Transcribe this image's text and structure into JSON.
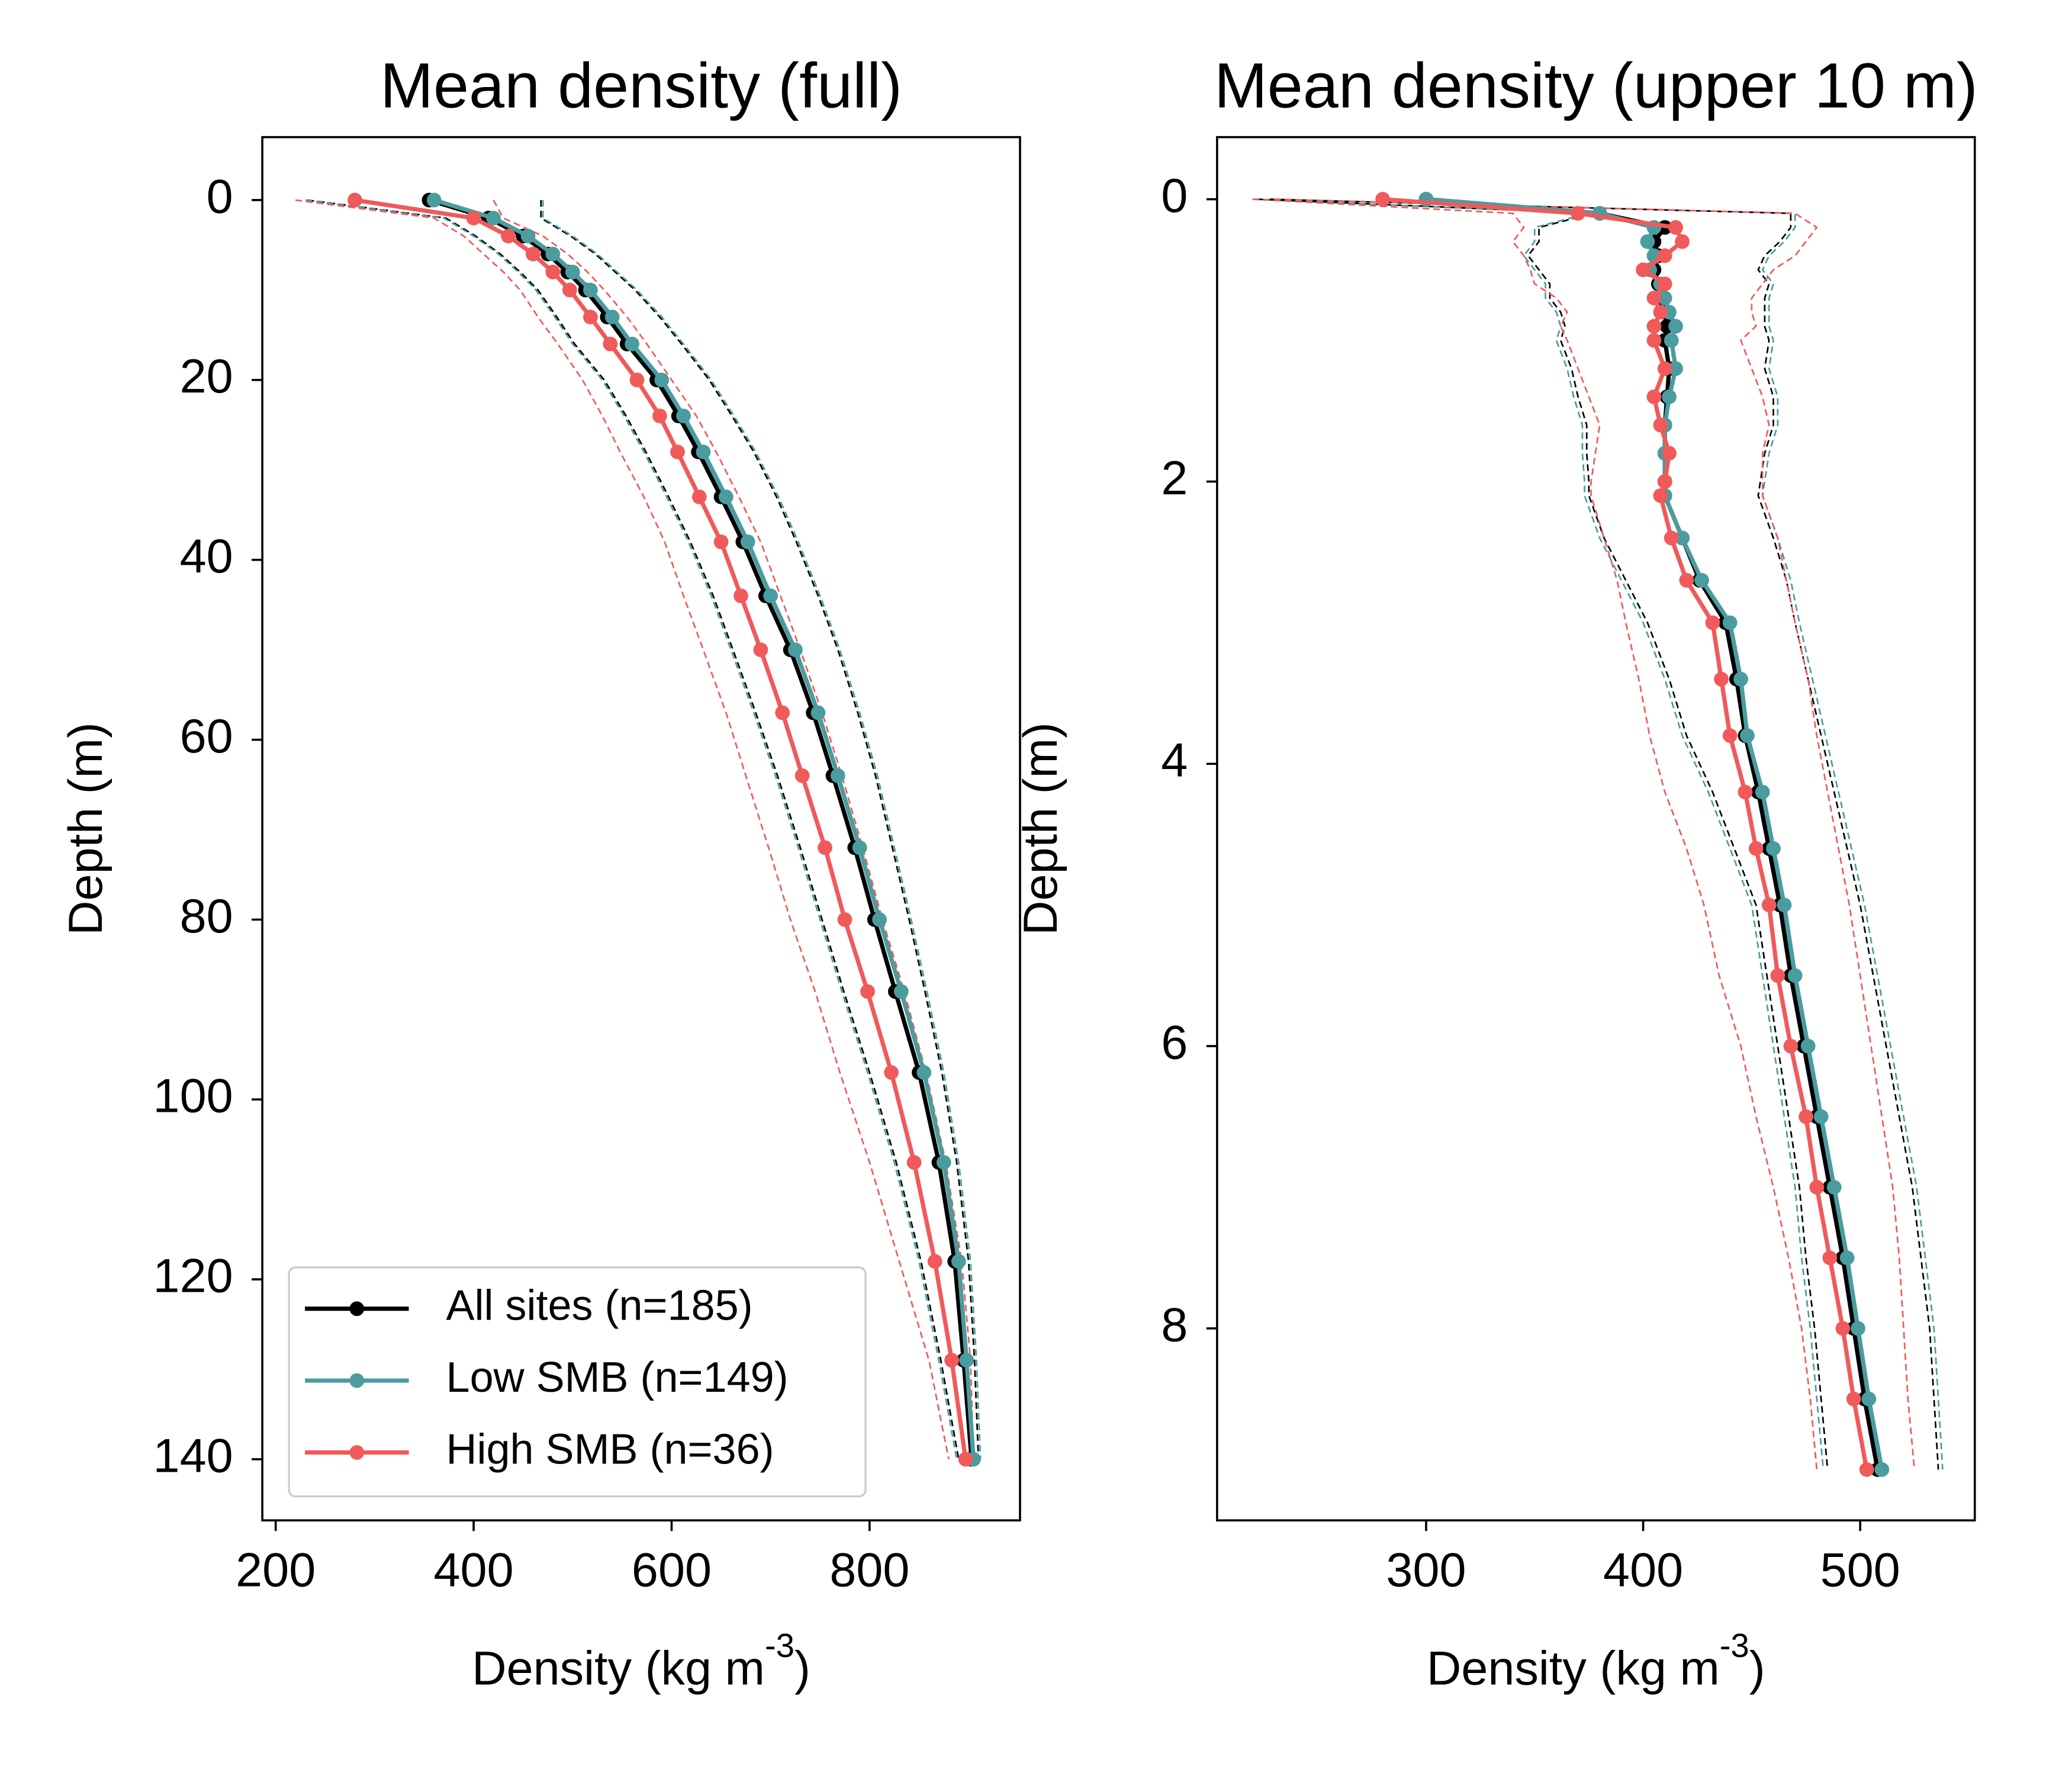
{
  "chart_data": [
    {
      "type": "line",
      "title": "Mean density (full)",
      "ylabel": "Depth (m)",
      "xlabel": [
        "Density (kg m",
        "-3",
        ")"
      ],
      "xlim": [
        186.5,
        952
      ],
      "xticks": [
        200,
        400,
        600,
        800
      ],
      "ylim": [
        146.8,
        -7
      ],
      "yticks": [
        0,
        20,
        40,
        60,
        80,
        100,
        120,
        140
      ],
      "legend": "lower left",
      "depth": [
        0,
        2,
        4,
        6,
        8,
        10,
        13,
        16,
        20,
        24,
        28,
        33,
        38,
        44,
        50,
        57,
        64,
        72,
        80,
        88,
        97,
        107,
        118,
        129,
        140
      ],
      "series": [
        {
          "color": "#000000",
          "dash": true,
          "values": [
            468,
            468,
            498,
            523,
            543,
            563,
            588,
            610,
            638,
            661,
            683,
            706,
            726,
            748,
            768,
            788,
            806,
            823,
            840,
            856,
            873,
            888,
            900,
            906,
            910
          ]
        },
        {
          "color": "#000000",
          "dash": true,
          "values": [
            232,
            372,
            402,
            427,
            447,
            465,
            484,
            502,
            532,
            554,
            574,
            597,
            619,
            642,
            662,
            685,
            707,
            730,
            752,
            774,
            800,
            827,
            852,
            872,
            890
          ]
        },
        {
          "color": "#4a9c9f",
          "dash": true,
          "values": [
            470,
            470,
            500,
            525,
            545,
            565,
            590,
            612,
            640,
            663,
            685,
            708,
            728,
            750,
            770,
            790,
            808,
            825,
            842,
            858,
            875,
            890,
            902,
            908,
            912
          ]
        },
        {
          "color": "#4a9c9f",
          "dash": true,
          "values": [
            230,
            370,
            400,
            425,
            445,
            463,
            482,
            500,
            530,
            552,
            572,
            595,
            617,
            640,
            660,
            683,
            705,
            728,
            750,
            772,
            798,
            825,
            850,
            870,
            888
          ]
        },
        {
          "color": "#f05a5a",
          "dash": true,
          "values": [
            420,
            430,
            470,
            495,
            515,
            532,
            555,
            575,
            600,
            625,
            645,
            668,
            690,
            710,
            730,
            752,
            772,
            793,
            813,
            835,
            857,
            877,
            893,
            902,
            905
          ]
        },
        {
          "color": "#f05a5a",
          "dash": true,
          "values": [
            220,
            360,
            390,
            410,
            430,
            447,
            465,
            485,
            510,
            530,
            548,
            572,
            593,
            612,
            632,
            655,
            675,
            698,
            720,
            745,
            770,
            800,
            830,
            860,
            880
          ]
        },
        {
          "name": "All sites (n=185)",
          "color": "#000000",
          "values": [
            355,
            415,
            450,
            475,
            495,
            513,
            535,
            555,
            585,
            607,
            627,
            650,
            672,
            695,
            720,
            743,
            763,
            785,
            805,
            826,
            850,
            870,
            886,
            895,
            903
          ]
        },
        {
          "name": "Low SMB (n=149)",
          "color": "#4a9c9f",
          "values": [
            360,
            420,
            455,
            480,
            500,
            518,
            540,
            560,
            590,
            612,
            632,
            655,
            677,
            700,
            725,
            748,
            768,
            790,
            810,
            832,
            855,
            875,
            890,
            898,
            905
          ]
        },
        {
          "name": "High SMB (n=36)",
          "color": "#f05a5a",
          "values": [
            280,
            400,
            435,
            460,
            480,
            497,
            518,
            538,
            565,
            588,
            606,
            628,
            650,
            670,
            690,
            712,
            732,
            755,
            775,
            798,
            822,
            845,
            866,
            883,
            897
          ]
        }
      ]
    },
    {
      "type": "line",
      "title": "Mean density (upper 10 m)",
      "ylabel": "Depth (m)",
      "xlabel": [
        "Density (kg m",
        "-3",
        ")"
      ],
      "xlim": [
        203.7,
        552.8
      ],
      "xticks": [
        300,
        400,
        500
      ],
      "ylim": [
        9.36,
        -0.44
      ],
      "yticks": [
        0,
        2,
        4,
        6,
        8
      ],
      "depth": [
        0,
        0.1,
        0.2,
        0.3,
        0.4,
        0.5,
        0.6,
        0.7,
        0.8,
        0.9,
        1.0,
        1.2,
        1.4,
        1.6,
        1.8,
        2.0,
        2.1,
        2.4,
        2.7,
        3.0,
        3.4,
        3.8,
        4.2,
        4.6,
        5.0,
        5.5,
        6.0,
        6.5,
        7.0,
        7.5,
        8.0,
        8.5,
        9.0
      ],
      "series": [
        {
          "color": "#000000",
          "dash": true,
          "values": [
            228,
            468,
            468,
            463,
            456,
            453,
            458,
            456,
            456,
            456,
            458,
            456,
            460,
            460,
            456,
            454,
            453,
            460,
            466,
            470,
            476,
            482,
            488,
            494,
            500,
            506,
            512,
            518,
            524,
            528,
            532,
            534,
            536
          ]
        },
        {
          "color": "#000000",
          "dash": true,
          "values": [
            222,
            377,
            352,
            352,
            347,
            352,
            357,
            357,
            362,
            364,
            362,
            367,
            370,
            374,
            374,
            375,
            375,
            382,
            392,
            402,
            412,
            420,
            432,
            442,
            452,
            457,
            462,
            467,
            472,
            475,
            479,
            482,
            485
          ]
        },
        {
          "color": "#4a9c9f",
          "dash": true,
          "values": [
            230,
            470,
            470,
            465,
            458,
            455,
            460,
            458,
            458,
            458,
            460,
            458,
            462,
            462,
            458,
            456,
            455,
            462,
            468,
            472,
            478,
            484,
            490,
            496,
            502,
            508,
            514,
            520,
            526,
            530,
            534,
            536,
            538
          ]
        },
        {
          "color": "#4a9c9f",
          "dash": true,
          "values": [
            220,
            375,
            350,
            350,
            345,
            350,
            355,
            355,
            360,
            362,
            360,
            365,
            368,
            372,
            372,
            373,
            373,
            380,
            390,
            400,
            410,
            418,
            430,
            440,
            450,
            455,
            460,
            465,
            470,
            473,
            477,
            480,
            483
          ]
        },
        {
          "color": "#f05a5a",
          "dash": true,
          "values": [
            230,
            470,
            480,
            475,
            470,
            460,
            455,
            450,
            450,
            452,
            445,
            450,
            455,
            458,
            455,
            455,
            455,
            462,
            466,
            470,
            476,
            480,
            485,
            490,
            495,
            500,
            505,
            510,
            515,
            518,
            520,
            522,
            525
          ]
        },
        {
          "color": "#f05a5a",
          "dash": true,
          "values": [
            220,
            340,
            345,
            340,
            345,
            348,
            350,
            360,
            365,
            362,
            365,
            370,
            375,
            380,
            378,
            376,
            376,
            382,
            388,
            392,
            398,
            403,
            410,
            420,
            428,
            435,
            445,
            452,
            460,
            467,
            473,
            477,
            480
          ]
        },
        {
          "name": "All sites (n=185)",
          "color": "#000000",
          "values": [
            300,
            380,
            410,
            405,
            407,
            405,
            407,
            409,
            410,
            411,
            410,
            412,
            411,
            410,
            410,
            410,
            410,
            418,
            426,
            438,
            443,
            447,
            453,
            458,
            463,
            468,
            474,
            480,
            486,
            492,
            497,
            502,
            508
          ]
        },
        {
          "name": "Low SMB (n=149)",
          "color": "#4a9c9f",
          "values": [
            300,
            380,
            405,
            402,
            405,
            403,
            408,
            410,
            412,
            415,
            413,
            415,
            412,
            410,
            410,
            410,
            410,
            418,
            427,
            440,
            445,
            448,
            455,
            460,
            465,
            470,
            476,
            482,
            488,
            494,
            499,
            504,
            510
          ]
        },
        {
          "name": "High SMB (n=36)",
          "color": "#f05a5a",
          "values": [
            280,
            370,
            415,
            418,
            410,
            400,
            410,
            405,
            408,
            405,
            405,
            410,
            405,
            408,
            412,
            410,
            408,
            413,
            420,
            432,
            436,
            440,
            447,
            452,
            458,
            462,
            468,
            475,
            480,
            486,
            492,
            497,
            503
          ]
        }
      ]
    }
  ]
}
